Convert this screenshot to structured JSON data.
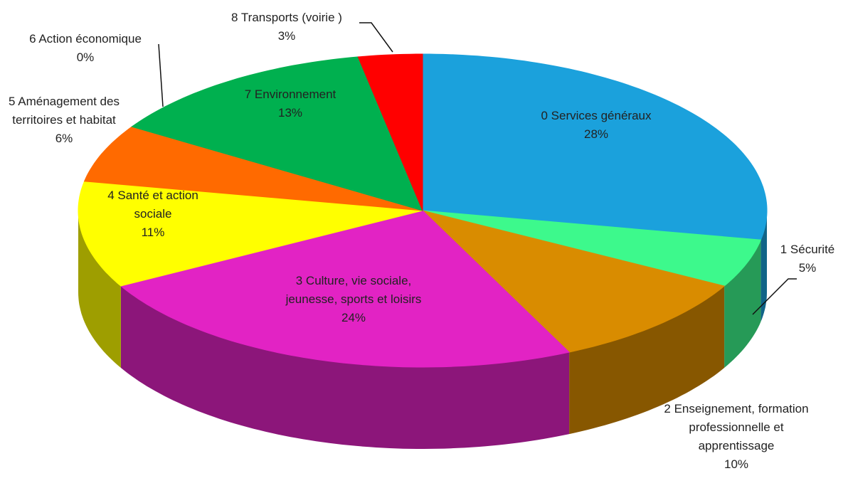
{
  "chart_data": {
    "type": "pie",
    "categories": [
      "0 Services généraux",
      "1 Sécurité",
      "2 Enseignement, formation professionnelle et apprentissage",
      "3 Culture, vie sociale, jeunesse, sports et loisirs",
      "4 Santé et action sociale",
      "5 Aménagement des territoires et habitat",
      "6 Action économique",
      "7 Environnement",
      "8 Transports (voirie )"
    ],
    "values": [
      28,
      5,
      10,
      24,
      11,
      6,
      0,
      13,
      3
    ],
    "value_labels": [
      "28%",
      "5%",
      "10%",
      "24%",
      "11%",
      "6%",
      "0%",
      "13%",
      "3%"
    ],
    "colors": [
      "#1ba1dc",
      "#3df98c",
      "#d98c00",
      "#e223c4",
      "#ffff00",
      "#ff6a00",
      "#5ab9ea",
      "#00b04f",
      "#ff0000"
    ]
  }
}
